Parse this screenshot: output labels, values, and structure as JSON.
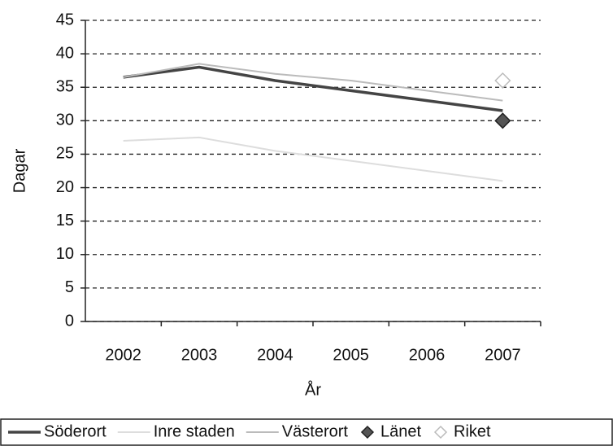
{
  "chart_data": {
    "type": "line",
    "x_label": "År",
    "y_label": "Dagar",
    "categories": [
      "2002",
      "2003",
      "2004",
      "2005",
      "2006",
      "2007"
    ],
    "series": [
      {
        "name": "Söderort",
        "color": "#444444",
        "values": [
          36.5,
          38,
          36,
          34.5,
          33,
          31.5
        ]
      },
      {
        "name": "Inre staden",
        "color": "#dddddd",
        "values": [
          27,
          27.5,
          25.5,
          24,
          22.5,
          21
        ]
      },
      {
        "name": "Västerort",
        "color": "#bbbbbb",
        "values": [
          36.5,
          38.5,
          37,
          36,
          34.5,
          33
        ]
      },
      {
        "name": "Länet",
        "color": "#555555",
        "marker": "diamond",
        "values": [
          null,
          null,
          null,
          null,
          null,
          30
        ]
      },
      {
        "name": "Riket",
        "color": "#bbbbbb",
        "marker": "diamond-open",
        "values": [
          null,
          null,
          null,
          null,
          null,
          36
        ]
      }
    ],
    "ylim": [
      0,
      45
    ],
    "yticks": [
      0,
      5,
      10,
      15,
      20,
      25,
      30,
      35,
      40,
      45
    ],
    "grid": true,
    "legend": "bottom"
  }
}
